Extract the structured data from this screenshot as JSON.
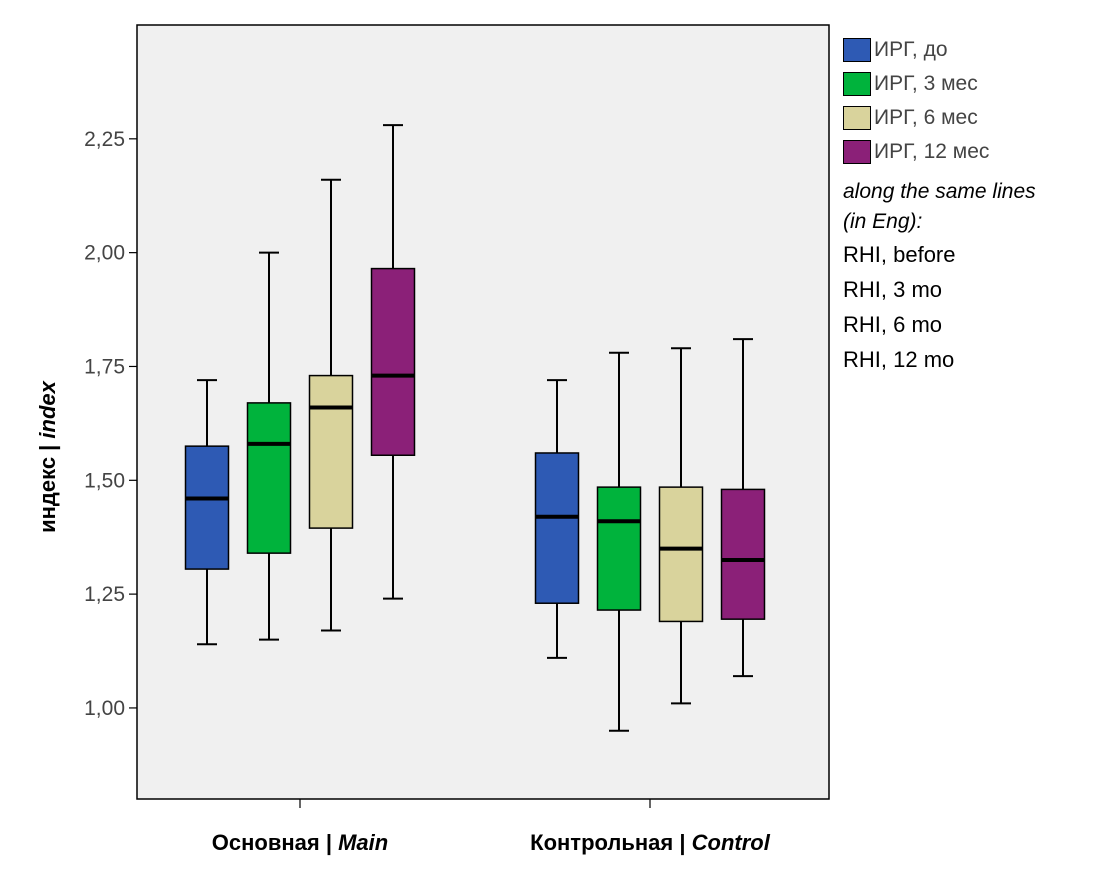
{
  "chart_data": {
    "type": "boxplot",
    "ylabel_main": "индекс | ",
    "ylabel_italic": "index",
    "ylim": [
      0.8,
      2.5
    ],
    "yticks": [
      1.0,
      1.25,
      1.5,
      1.75,
      2.0,
      2.25
    ],
    "ytick_labels": [
      "1,00",
      "1,25",
      "1,50",
      "1,75",
      "2,00",
      "2,25"
    ],
    "grid": false,
    "legend_position": "right",
    "categories": [
      {
        "label_main": "Основная | ",
        "label_italic": "Main"
      },
      {
        "label_main": "Контрольная | ",
        "label_italic": "Control"
      }
    ],
    "series": [
      {
        "name": "ИРГ, до",
        "color": "#2e5ab4",
        "boxes": [
          {
            "min": 1.14,
            "q1": 1.305,
            "median": 1.46,
            "q3": 1.575,
            "max": 1.72
          },
          {
            "min": 1.11,
            "q1": 1.23,
            "median": 1.42,
            "q3": 1.56,
            "max": 1.72
          }
        ]
      },
      {
        "name": "ИРГ, 3 мес",
        "color": "#00b33c",
        "boxes": [
          {
            "min": 1.15,
            "q1": 1.34,
            "median": 1.58,
            "q3": 1.67,
            "max": 2.0
          },
          {
            "min": 0.95,
            "q1": 1.215,
            "median": 1.41,
            "q3": 1.485,
            "max": 1.78
          }
        ]
      },
      {
        "name": "ИРГ, 6 мес",
        "color": "#d9d39c",
        "boxes": [
          {
            "min": 1.17,
            "q1": 1.395,
            "median": 1.66,
            "q3": 1.73,
            "max": 2.16
          },
          {
            "min": 1.01,
            "q1": 1.19,
            "median": 1.35,
            "q3": 1.485,
            "max": 1.79
          }
        ]
      },
      {
        "name": "ИРГ, 12 мес",
        "color": "#8b2078",
        "boxes": [
          {
            "min": 1.24,
            "q1": 1.555,
            "median": 1.73,
            "q3": 1.965,
            "max": 2.28
          },
          {
            "min": 1.07,
            "q1": 1.195,
            "median": 1.325,
            "q3": 1.48,
            "max": 1.81
          }
        ]
      }
    ],
    "legend_note_line1": "along the same lines",
    "legend_note_line2": "(in Eng):",
    "legend_eng": [
      "RHI, before",
      "RHI, 3 mo",
      "RHI, 6 mo",
      "RHI, 12 mo"
    ]
  }
}
